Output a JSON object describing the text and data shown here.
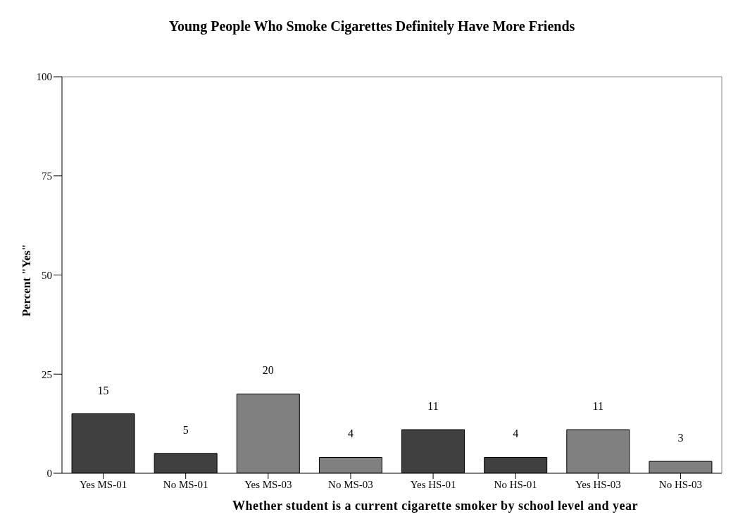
{
  "chart_data": {
    "type": "bar",
    "title": "Young People Who Smoke Cigarettes Definitely Have More Friends",
    "xlabel": "Whether student is a current cigarette smoker by school level and year",
    "ylabel": "Percent \"Yes\"",
    "categories": [
      "Yes MS-01",
      "No MS-01",
      "Yes MS-03",
      "No MS-03",
      "Yes HS-01",
      "No HS-01",
      "Yes HS-03",
      "No HS-03"
    ],
    "values": [
      15,
      5,
      20,
      4,
      11,
      4,
      11,
      3
    ],
    "colors": [
      "#404040",
      "#404040",
      "#808080",
      "#808080",
      "#404040",
      "#404040",
      "#808080",
      "#808080"
    ],
    "ylim": [
      0,
      100
    ],
    "yticks": [
      0,
      25,
      50,
      75,
      100
    ],
    "data_labels": true,
    "grid": false
  }
}
